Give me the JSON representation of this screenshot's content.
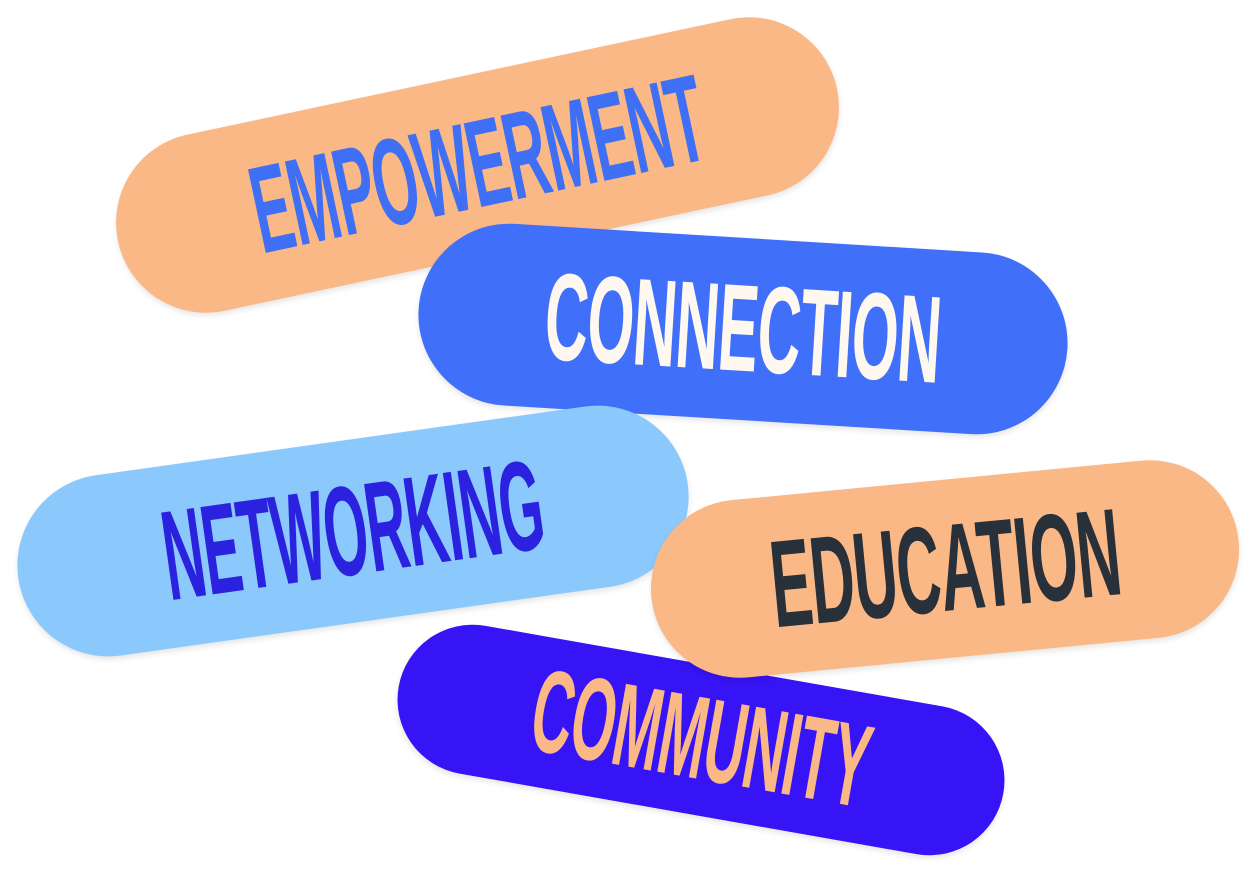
{
  "words": {
    "empowerment": "EMPOWERMENT",
    "connection": "CONNECTION",
    "networking": "NETWORKING",
    "community": "COMMUNITY",
    "education": "EDUCATION"
  },
  "colors": {
    "peach": "#FBB887",
    "blue": "#4070FA",
    "light_blue": "#8BC8FC",
    "violet": "#3714F5",
    "cream_text": "#FFF8F0",
    "dark_text": "#28303A",
    "blue_text": "#3E6FF5",
    "indigo_text": "#2B22E0"
  }
}
